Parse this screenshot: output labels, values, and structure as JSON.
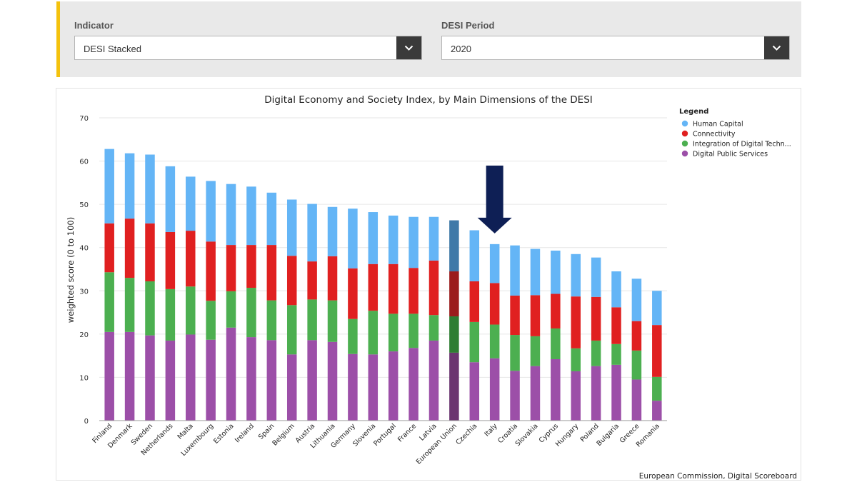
{
  "filters": {
    "indicator": {
      "label": "Indicator",
      "value": "DESI Stacked"
    },
    "period": {
      "label": "DESI Period",
      "value": "2020"
    }
  },
  "icons": {
    "dropdown": "chevron-down-icon",
    "highlight": "down-arrow-icon"
  },
  "chart_data": {
    "type": "bar",
    "stacked": true,
    "title": "Digital Economy and Society Index, by Main Dimensions of the DESI",
    "ylabel": "weighted score (0 to 100)",
    "xlabel": "",
    "ylim": [
      0,
      70
    ],
    "yticks": [
      0,
      10,
      20,
      30,
      40,
      50,
      60,
      70
    ],
    "grid": true,
    "legend_title": "Legend",
    "legend_position": "top-right",
    "source": "European Commission, Digital Scoreboard",
    "highlight_category": "European Union",
    "annotation": {
      "type": "arrow",
      "target": "Italy",
      "color": "#0e1f55"
    },
    "categories": [
      "Finland",
      "Denmark",
      "Sweden",
      "Netherlands",
      "Malta",
      "Luxembourg",
      "Estonia",
      "Ireland",
      "Spain",
      "Belgium",
      "Austria",
      "Lithuania",
      "Germany",
      "Slovenia",
      "Portugal",
      "France",
      "Latvia",
      "European Union",
      "Czechia",
      "Italy",
      "Croatia",
      "Slovakia",
      "Cyprus",
      "Hungary",
      "Poland",
      "Bulgaria",
      "Greece",
      "Romania"
    ],
    "series": [
      {
        "name": "Digital Public Services",
        "color": "#9c4fa8",
        "highlight_color": "#6b3570",
        "values": [
          20.5,
          20.5,
          19.7,
          18.5,
          19.9,
          18.7,
          21.5,
          19.3,
          18.6,
          15.3,
          18.6,
          18.2,
          15.4,
          15.3,
          16.0,
          16.8,
          18.5,
          15.7,
          13.5,
          14.4,
          11.5,
          12.6,
          14.2,
          11.4,
          12.6,
          12.9,
          9.5,
          4.6
        ]
      },
      {
        "name": "Integration of Digital Techn...",
        "color": "#4caf50",
        "highlight_color": "#2e7d32",
        "values": [
          13.8,
          12.5,
          12.5,
          11.9,
          11.1,
          9.0,
          8.4,
          11.4,
          9.2,
          11.4,
          9.4,
          9.6,
          8.1,
          10.1,
          8.7,
          7.9,
          5.9,
          8.4,
          9.3,
          7.8,
          8.3,
          6.9,
          7.1,
          5.3,
          5.9,
          4.8,
          6.7,
          5.5
        ]
      },
      {
        "name": "Connectivity",
        "color": "#e02020",
        "highlight_color": "#9b1c1c",
        "values": [
          11.3,
          13.7,
          13.4,
          13.2,
          12.9,
          13.7,
          10.7,
          9.9,
          12.8,
          11.4,
          8.8,
          10.2,
          11.7,
          10.8,
          11.5,
          10.6,
          12.6,
          10.4,
          9.4,
          9.6,
          9.1,
          9.5,
          8.0,
          12.0,
          10.1,
          8.5,
          6.8,
          12.0
        ]
      },
      {
        "name": "Human Capital",
        "color": "#64b5f6",
        "highlight_color": "#3f79a8",
        "values": [
          17.2,
          15.1,
          15.9,
          15.2,
          12.5,
          14.0,
          14.1,
          13.5,
          12.1,
          13.0,
          13.3,
          11.4,
          13.8,
          12.0,
          11.2,
          11.8,
          10.1,
          11.8,
          11.8,
          9.0,
          11.6,
          10.7,
          10.0,
          9.8,
          9.1,
          8.3,
          9.8,
          7.9
        ]
      }
    ]
  }
}
